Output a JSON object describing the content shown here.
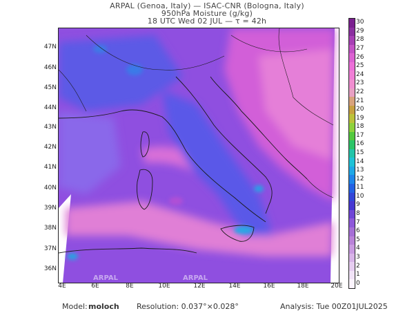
{
  "header": {
    "line1": "ARPAL (Genoa, Italy)  —  ISAC-CNR (Bologna, Italy)",
    "line2": "950hPa Moisture (g/kg)",
    "line3": "18 UTC Wed 02 JUL   —   τ = 42h"
  },
  "map": {
    "lat_labels": [
      "47N",
      "46N",
      "45N",
      "44N",
      "43N",
      "42N",
      "41N",
      "40N",
      "39N",
      "38N",
      "37N",
      "36N"
    ],
    "lon_labels": [
      "4E",
      "6E",
      "8E",
      "10E",
      "12E",
      "14E",
      "16E",
      "18E",
      "20E"
    ],
    "watermark": "ARPAL"
  },
  "colorbar": {
    "labels": [
      "30",
      "29",
      "28",
      "27",
      "26",
      "25",
      "24",
      "23",
      "22",
      "21",
      "20",
      "19",
      "18",
      "17",
      "16",
      "15",
      "14",
      "13",
      "12",
      "11",
      "10",
      "9",
      "8",
      "7",
      "6",
      "5",
      "4",
      "3",
      "2",
      "1",
      "0"
    ],
    "colors": {
      "30": "#7a1f8f",
      "29": "#8b2fa0",
      "28": "#a73fb5",
      "27": "#c452c6",
      "26": "#dc62d2",
      "25": "#ec70d8",
      "24": "#f07fd6",
      "23": "#f08ed0",
      "22": "#e8a0c4",
      "21": "#d8a27c",
      "20": "#c8a040",
      "19": "#bcc23a",
      "18": "#8ed23c",
      "17": "#52c83e",
      "16": "#2cc468",
      "15": "#22c4a8",
      "14": "#1ec2d6",
      "13": "#1ea8e6",
      "12": "#1f86ea",
      "11": "#2462e4",
      "10": "#3346d8",
      "9": "#4638d2",
      "8": "#6f45d6",
      "7": "#8e58da",
      "6": "#a56ed6",
      "5": "#b982d8",
      "4": "#c99ae0",
      "3": "#d8b4e8",
      "2": "#e6cdf0",
      "1": "#f1e3f7",
      "0": "#fbf4fd"
    }
  },
  "footer": {
    "model_label": "Model:",
    "model_value": "moloch",
    "resolution": "Resolution: 0.037°×0.028°",
    "analysis": "Analysis: Tue 00Z01JUL2025"
  }
}
